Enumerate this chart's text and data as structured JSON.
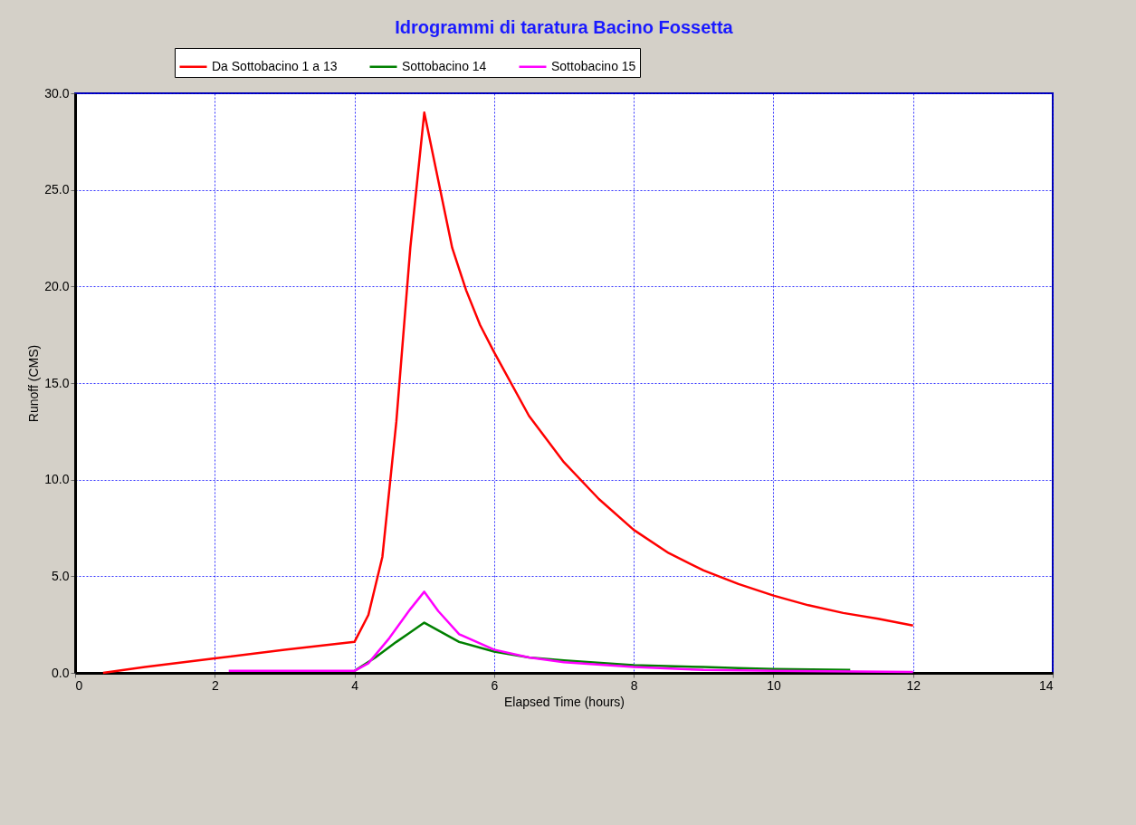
{
  "chart_data": {
    "type": "line",
    "title": "Idrogrammi di taratura Bacino Fossetta",
    "xlabel": "Elapsed Time (hours)",
    "ylabel": "Runoff (CMS)",
    "xlim": [
      0,
      14
    ],
    "xticks": [
      0,
      2,
      4,
      6,
      8,
      10,
      12,
      14
    ],
    "ylim": [
      0,
      30
    ],
    "yticks": [
      {
        "value": 0,
        "label": "0.0"
      },
      {
        "value": 5,
        "label": "5.0"
      },
      {
        "value": 10,
        "label": "10.0"
      },
      {
        "value": 15,
        "label": "15.0"
      },
      {
        "value": 20,
        "label": "20.0"
      },
      {
        "value": 25,
        "label": "25.0"
      },
      {
        "value": 30,
        "label": "30.0"
      }
    ],
    "grid": true,
    "legend": "top",
    "marker": "none",
    "line_style": "solid",
    "series": [
      {
        "name": "Da Sottobacino 1 a 13",
        "color": "#ff0000",
        "x": [
          0.4,
          1,
          2,
          3,
          4,
          4.2,
          4.4,
          4.6,
          4.8,
          5,
          5.2,
          5.4,
          5.6,
          5.8,
          6,
          6.5,
          7,
          7.5,
          8,
          8.5,
          9,
          9.5,
          10,
          10.5,
          11,
          11.5,
          12
        ],
        "values": [
          0,
          0.3,
          0.75,
          1.2,
          1.6,
          3,
          6,
          13,
          22,
          29,
          25.5,
          22,
          19.8,
          18,
          16.6,
          13.3,
          10.9,
          9,
          7.4,
          6.2,
          5.3,
          4.6,
          4,
          3.5,
          3.1,
          2.8,
          2.45
        ]
      },
      {
        "name": "Sottobacino 14",
        "color": "#008000",
        "x": [
          4,
          4.3,
          4.6,
          4.8,
          5,
          5.2,
          5.5,
          6,
          6.5,
          7,
          8,
          9,
          9.5,
          10,
          11.1
        ],
        "values": [
          0.1,
          0.8,
          1.6,
          2.1,
          2.6,
          2.2,
          1.6,
          1.1,
          0.8,
          0.65,
          0.4,
          0.3,
          0.25,
          0.2,
          0.15
        ]
      },
      {
        "name": "Sottobacino 15",
        "color": "#ff00ff",
        "x": [
          2.2,
          3,
          4,
          4.2,
          4.5,
          4.8,
          5,
          5.2,
          5.5,
          6,
          6.5,
          7,
          8,
          9,
          10,
          12
        ],
        "values": [
          0.1,
          0.1,
          0.1,
          0.5,
          1.8,
          3.3,
          4.2,
          3.2,
          2,
          1.2,
          0.8,
          0.55,
          0.3,
          0.15,
          0.1,
          0.05
        ]
      }
    ]
  }
}
